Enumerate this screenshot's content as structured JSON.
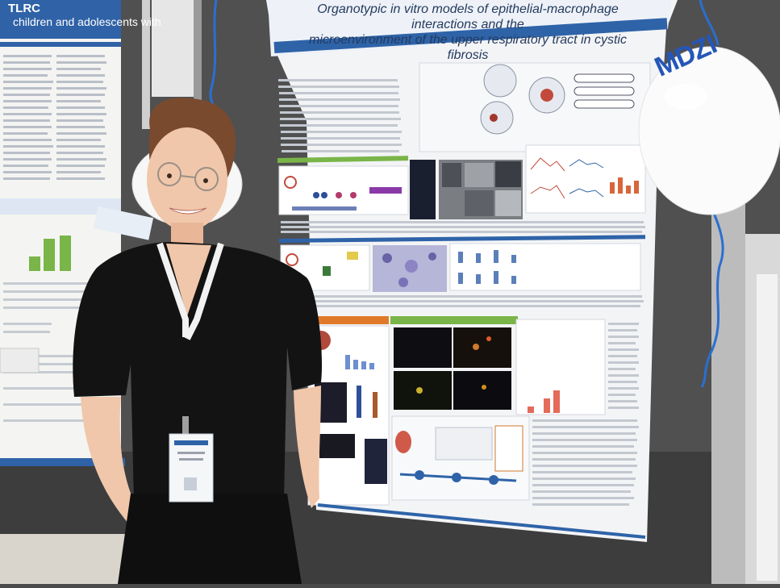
{
  "poster": {
    "title_line1": "Organotypic in vitro models of epithelial-macrophage interactions and the",
    "title_line2": "microenvironment of the upper respiratory tract in cystic fibrosis"
  },
  "left_poster": {
    "logo_text": "TLRC",
    "header_text": "children and adolescents with"
  },
  "balloon": {
    "logo_text": "MDZI"
  },
  "colors": {
    "wall": "#4a4a4a",
    "poster_blue": "#2e63a8",
    "shirt": "#141414",
    "lanyard": "#f2f2f2"
  }
}
